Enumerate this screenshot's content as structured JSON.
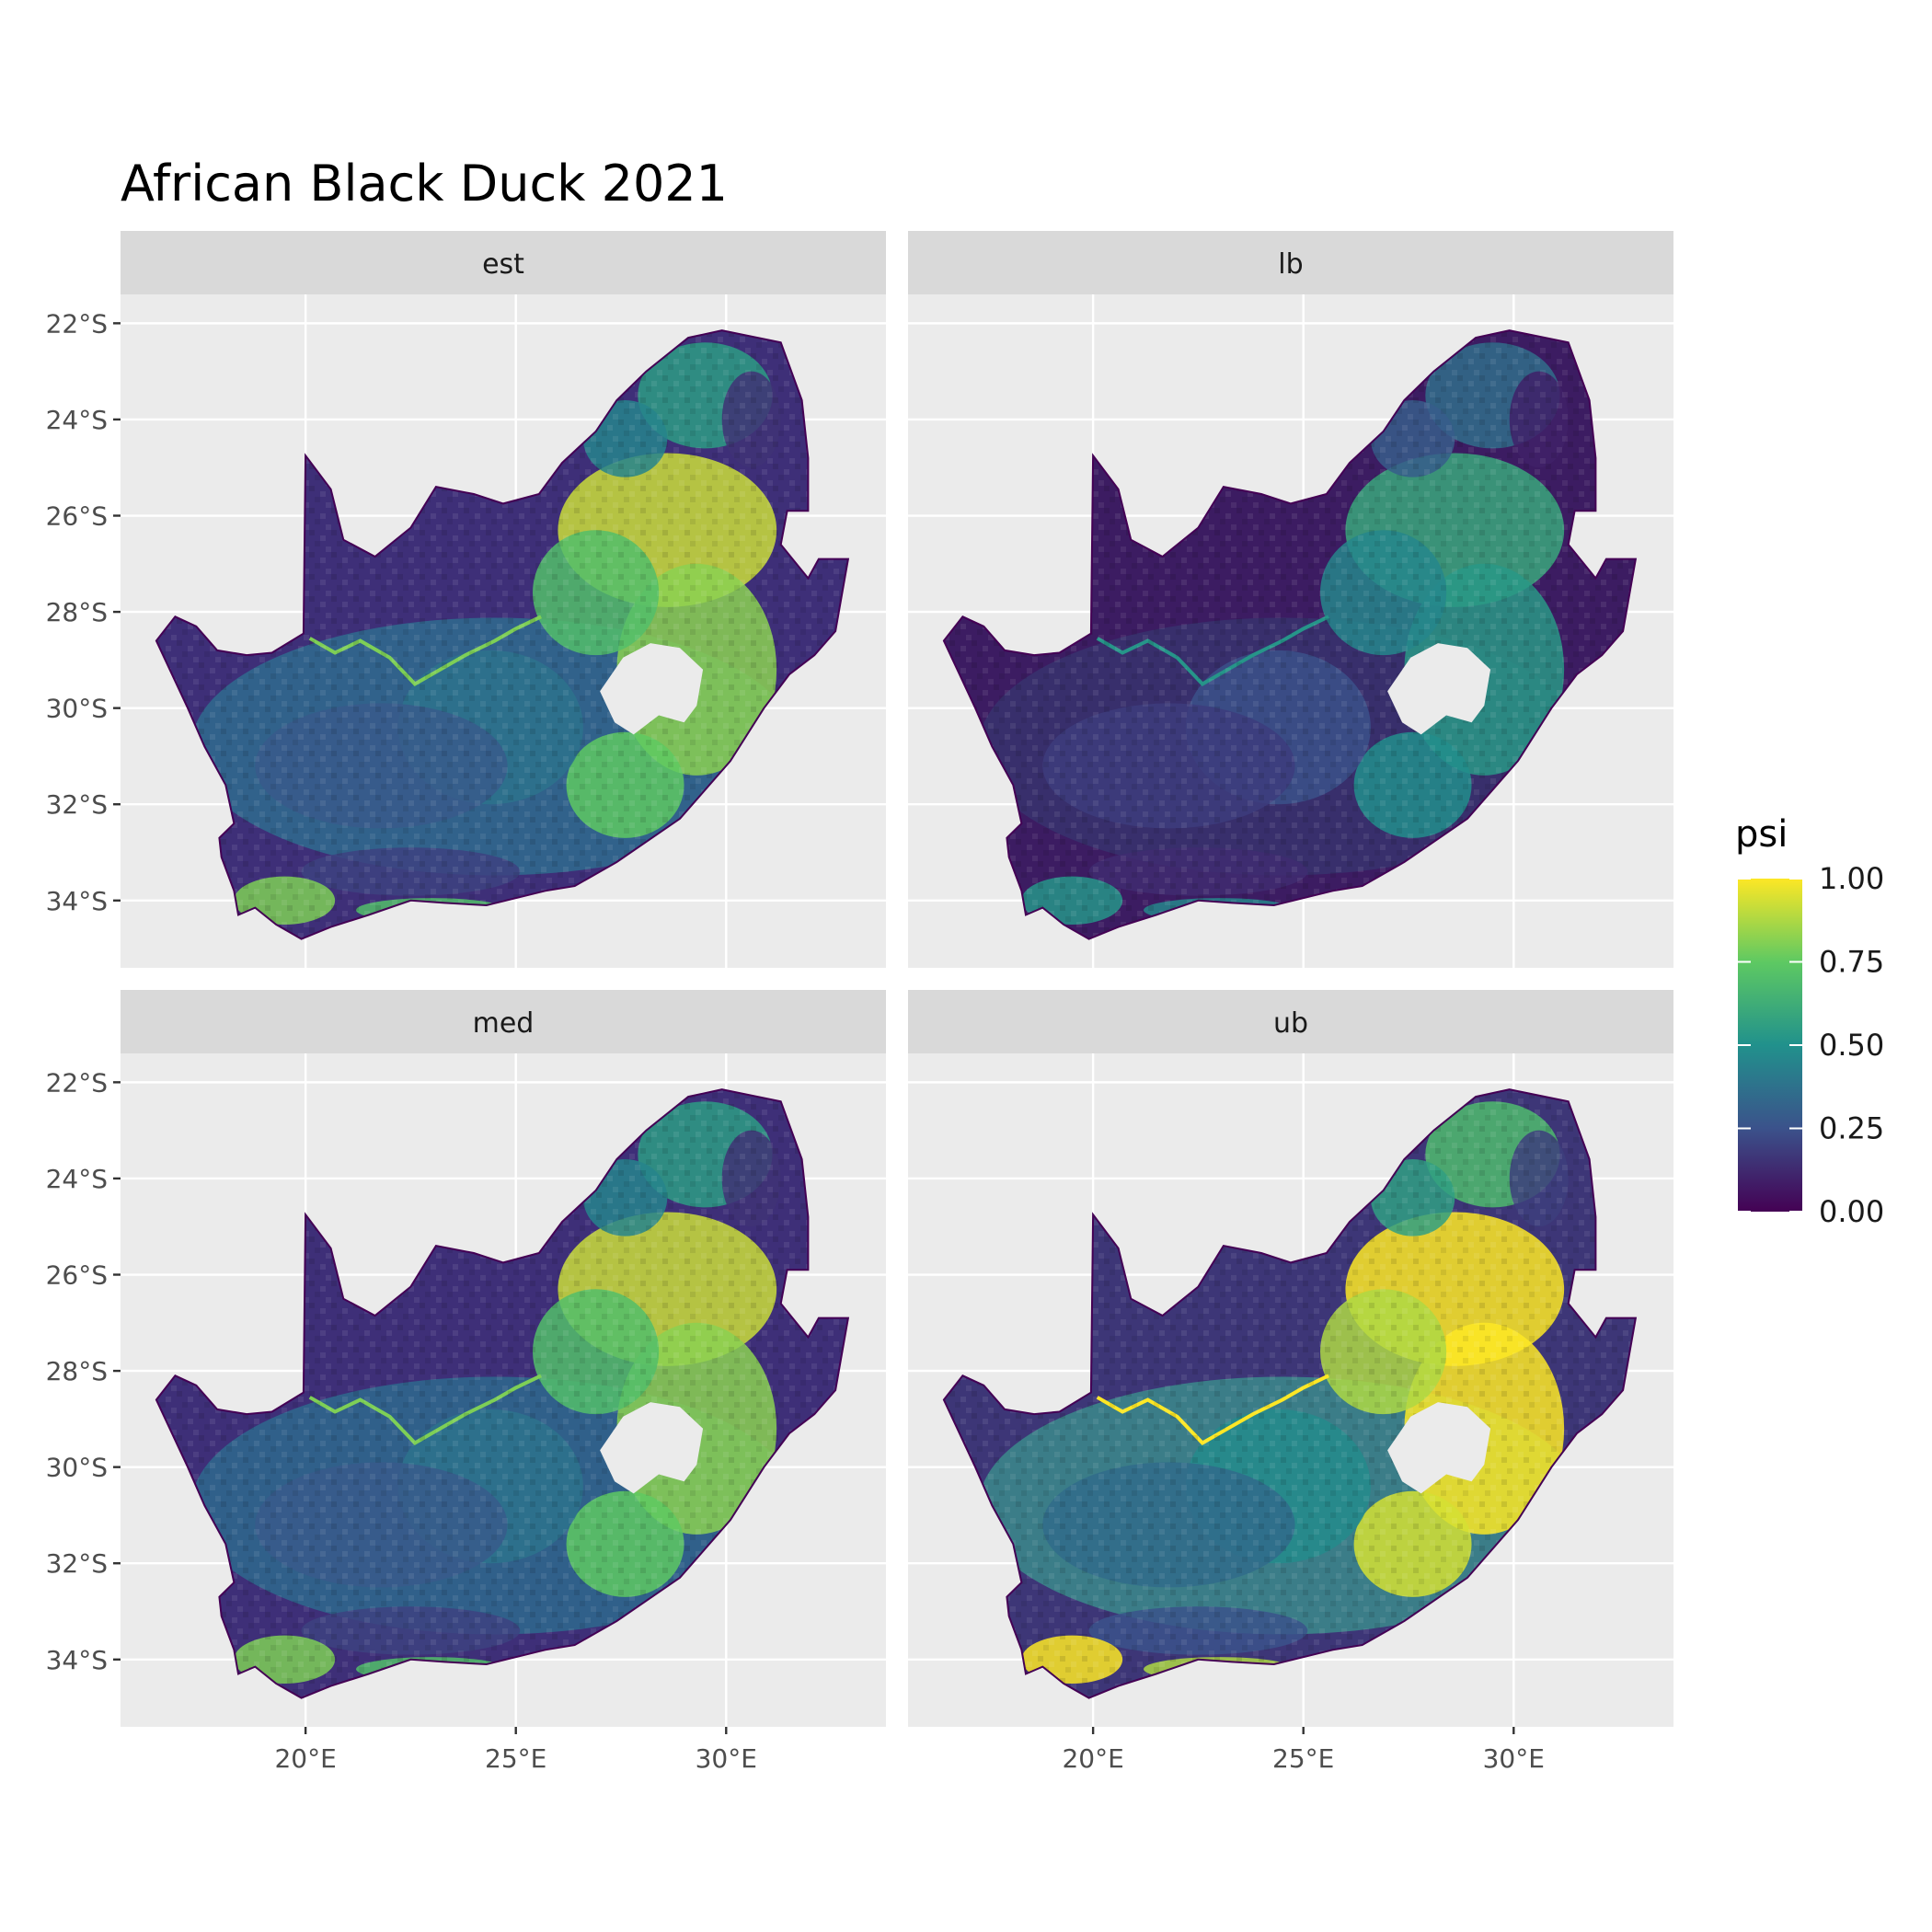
{
  "title": "African Black Duck 2021",
  "chart_data": {
    "type": "heatmap",
    "facets": [
      "est",
      "lb",
      "med",
      "ub"
    ],
    "x_ticks": [
      {
        "value": 20,
        "label": "20°E"
      },
      {
        "value": 25,
        "label": "25°E"
      },
      {
        "value": 30,
        "label": "30°E"
      }
    ],
    "y_ticks": [
      {
        "value": -22,
        "label": "22°S"
      },
      {
        "value": -24,
        "label": "24°S"
      },
      {
        "value": -26,
        "label": "26°S"
      },
      {
        "value": -28,
        "label": "28°S"
      },
      {
        "value": -30,
        "label": "30°S"
      },
      {
        "value": -32,
        "label": "32°S"
      },
      {
        "value": -34,
        "label": "34°S"
      }
    ],
    "xlim": [
      15.6,
      33.8
    ],
    "ylim": [
      -35.4,
      -21.4
    ],
    "grid": true,
    "legend": {
      "title": "psi",
      "position": "right",
      "ticks": [
        {
          "value": 0.0,
          "label": "0.00"
        },
        {
          "value": 0.25,
          "label": "0.25"
        },
        {
          "value": 0.5,
          "label": "0.50"
        },
        {
          "value": 0.75,
          "label": "0.75"
        },
        {
          "value": 1.0,
          "label": "1.00"
        }
      ],
      "colors": [
        "#440154",
        "#3b528b",
        "#21918c",
        "#5ec962",
        "#fde725"
      ]
    },
    "colors": {
      "panel_bg": "#ebebeb",
      "strip_bg": "#d9d9d9",
      "grid": "#ffffff",
      "tick_text": "#4d4d4d"
    }
  }
}
